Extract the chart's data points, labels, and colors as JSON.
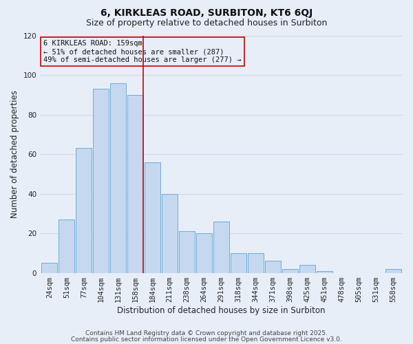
{
  "title": "6, KIRKLEAS ROAD, SURBITON, KT6 6QJ",
  "subtitle": "Size of property relative to detached houses in Surbiton",
  "xlabel": "Distribution of detached houses by size in Surbiton",
  "ylabel": "Number of detached properties",
  "categories": [
    "24sqm",
    "51sqm",
    "77sqm",
    "104sqm",
    "131sqm",
    "158sqm",
    "184sqm",
    "211sqm",
    "238sqm",
    "264sqm",
    "291sqm",
    "318sqm",
    "344sqm",
    "371sqm",
    "398sqm",
    "425sqm",
    "451sqm",
    "478sqm",
    "505sqm",
    "531sqm",
    "558sqm"
  ],
  "values": [
    5,
    27,
    63,
    93,
    96,
    90,
    56,
    40,
    21,
    20,
    26,
    10,
    10,
    6,
    2,
    4,
    1,
    0,
    0,
    0,
    2
  ],
  "bar_color": "#c5d8f0",
  "bar_edge_color": "#6aaed6",
  "marker_index": 5,
  "marker_line_color": "#cc0000",
  "annotation_title": "6 KIRKLEAS ROAD: 159sqm",
  "annotation_line1": "← 51% of detached houses are smaller (287)",
  "annotation_line2": "49% of semi-detached houses are larger (277) →",
  "annotation_box_edge": "#cc0000",
  "ylim": [
    0,
    120
  ],
  "footer1": "Contains HM Land Registry data © Crown copyright and database right 2025.",
  "footer2": "Contains public sector information licensed under the Open Government Licence v3.0.",
  "background_color": "#e8eef8",
  "grid_color": "#d0d8e8",
  "title_fontsize": 10,
  "subtitle_fontsize": 9,
  "axis_label_fontsize": 8.5,
  "tick_fontsize": 7.5,
  "annotation_fontsize": 7.5,
  "footer_fontsize": 6.5
}
